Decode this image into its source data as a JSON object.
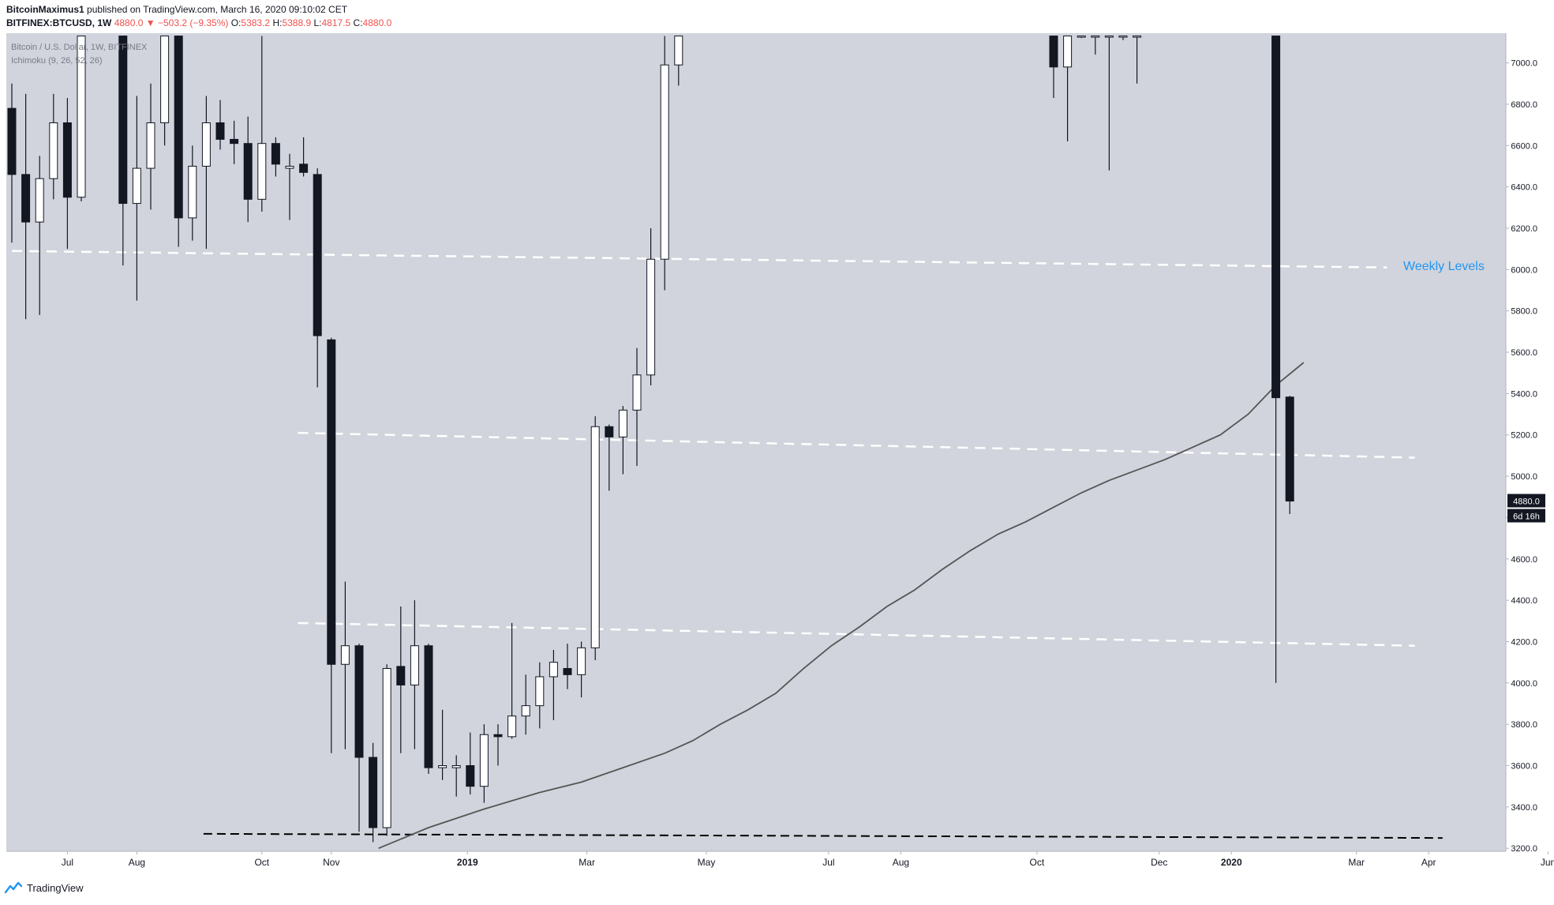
{
  "header": {
    "publisher": "BitcoinMaximus1",
    "published_text": "published on TradingView.com, March 16, 2020 09:10:02 CET",
    "symbol": "BITFINEX:BTCUSD, 1W",
    "last": "4880.0",
    "arrow": "▼",
    "change": "−503.2 (−9.35%)",
    "open_label": "O:",
    "open": "5383.2",
    "high_label": "H:",
    "high": "5388.9",
    "low_label": "L:",
    "low": "4817.5",
    "close_label": "C:",
    "close": "4880.0"
  },
  "overlay": {
    "title": "Bitcoin / U.S. Dollar, 1W, BITFINEX",
    "indicator": "Ichimoku (9, 26, 52, 26)"
  },
  "annotation": {
    "weekly_levels": "Weekly Levels"
  },
  "price_badge": {
    "price": "4880.0",
    "countdown": "6d 16h"
  },
  "footer": {
    "brand": "TradingView"
  },
  "colors": {
    "plot_bg": "#d1d4dc",
    "bull_body": "#ffffff",
    "bear_body": "#131722",
    "wick": "#131722",
    "level_line": "#ffffff",
    "support_line": "#000000",
    "ma_line": "#555555",
    "annotation": "#2196f3",
    "badge_bg": "#131722"
  },
  "chart_data": {
    "type": "candlestick",
    "title": "Bitcoin / U.S. Dollar, 1W, BITFINEX",
    "timeframe": "1W",
    "ylim": [
      3150,
      7130
    ],
    "y_ticks": [
      3200,
      3400,
      3600,
      3800,
      4000,
      4200,
      4400,
      4600,
      4800,
      5000,
      5200,
      5400,
      5600,
      5800,
      6000,
      6200,
      6400,
      6600,
      6800,
      7000
    ],
    "x_ticks": [
      {
        "label": "Jul",
        "week": 4
      },
      {
        "label": "Aug",
        "week": 9
      },
      {
        "label": "Oct",
        "week": 18
      },
      {
        "label": "Nov",
        "week": 23
      },
      {
        "label": "2019",
        "week": 32.8
      },
      {
        "label": "Mar",
        "week": 41.4
      },
      {
        "label": "May",
        "week": 50
      },
      {
        "label": "Jul",
        "week": 58.8
      },
      {
        "label": "Aug",
        "week": 64
      },
      {
        "label": "Oct",
        "week": 73.8
      },
      {
        "label": "Dec",
        "week": 82.6
      },
      {
        "label": "2020",
        "week": 87.8
      },
      {
        "label": "Mar",
        "week": 96.8
      },
      {
        "label": "Apr",
        "week": 102
      },
      {
        "label": "Jun",
        "week": 110.6
      }
    ],
    "candles": [
      {
        "w": 0,
        "o": 6780,
        "h": 6900,
        "l": 6130,
        "c": 6460
      },
      {
        "w": 1,
        "o": 6460,
        "h": 6850,
        "l": 5760,
        "c": 6230
      },
      {
        "w": 2,
        "o": 6230,
        "h": 6550,
        "l": 5780,
        "c": 6440
      },
      {
        "w": 3,
        "o": 6440,
        "h": 6850,
        "l": 6340,
        "c": 6710
      },
      {
        "w": 4,
        "o": 6710,
        "h": 6830,
        "l": 6100,
        "c": 6350
      },
      {
        "w": 5,
        "o": 6350,
        "h": 7130,
        "l": 6330,
        "c": 7130
      },
      {
        "w": 8,
        "o": 7130,
        "h": 7130,
        "l": 6020,
        "c": 6320
      },
      {
        "w": 9,
        "o": 6320,
        "h": 6840,
        "l": 5850,
        "c": 6490
      },
      {
        "w": 10,
        "o": 6490,
        "h": 6900,
        "l": 6290,
        "c": 6710
      },
      {
        "w": 11,
        "o": 6710,
        "h": 7130,
        "l": 6600,
        "c": 7130
      },
      {
        "w": 12,
        "o": 7130,
        "h": 7130,
        "l": 6110,
        "c": 6250
      },
      {
        "w": 13,
        "o": 6250,
        "h": 6600,
        "l": 6140,
        "c": 6500
      },
      {
        "w": 14,
        "o": 6500,
        "h": 6840,
        "l": 6100,
        "c": 6710
      },
      {
        "w": 15,
        "o": 6710,
        "h": 6820,
        "l": 6580,
        "c": 6630
      },
      {
        "w": 16,
        "o": 6630,
        "h": 6720,
        "l": 6510,
        "c": 6610
      },
      {
        "w": 17,
        "o": 6610,
        "h": 6740,
        "l": 6230,
        "c": 6340
      },
      {
        "w": 18,
        "o": 6340,
        "h": 7130,
        "l": 6280,
        "c": 6610
      },
      {
        "w": 19,
        "o": 6610,
        "h": 6640,
        "l": 6450,
        "c": 6510
      },
      {
        "w": 20,
        "o": 6490,
        "h": 6560,
        "l": 6240,
        "c": 6500
      },
      {
        "w": 21,
        "o": 6510,
        "h": 6640,
        "l": 6450,
        "c": 6470
      },
      {
        "w": 22,
        "o": 6460,
        "h": 6490,
        "l": 5430,
        "c": 5680
      },
      {
        "w": 23,
        "o": 5660,
        "h": 5670,
        "l": 3660,
        "c": 4090
      },
      {
        "w": 24,
        "o": 4090,
        "h": 4490,
        "l": 3680,
        "c": 4180
      },
      {
        "w": 25,
        "o": 4180,
        "h": 4190,
        "l": 3280,
        "c": 3640
      },
      {
        "w": 26,
        "o": 3640,
        "h": 3710,
        "l": 3230,
        "c": 3300
      },
      {
        "w": 27,
        "o": 3300,
        "h": 4090,
        "l": 3260,
        "c": 4070
      },
      {
        "w": 28,
        "o": 4080,
        "h": 4370,
        "l": 3660,
        "c": 3990
      },
      {
        "w": 29,
        "o": 3990,
        "h": 4400,
        "l": 3680,
        "c": 4180
      },
      {
        "w": 30,
        "o": 4180,
        "h": 4190,
        "l": 3560,
        "c": 3590
      },
      {
        "w": 31,
        "o": 3590,
        "h": 3870,
        "l": 3530,
        "c": 3600
      },
      {
        "w": 32,
        "o": 3590,
        "h": 3650,
        "l": 3450,
        "c": 3600
      },
      {
        "w": 33,
        "o": 3600,
        "h": 3760,
        "l": 3460,
        "c": 3500
      },
      {
        "w": 34,
        "o": 3500,
        "h": 3800,
        "l": 3420,
        "c": 3750
      },
      {
        "w": 35,
        "o": 3750,
        "h": 3800,
        "l": 3600,
        "c": 3740
      },
      {
        "w": 36,
        "o": 3740,
        "h": 4290,
        "l": 3730,
        "c": 3840
      },
      {
        "w": 37,
        "o": 3840,
        "h": 4040,
        "l": 3750,
        "c": 3890
      },
      {
        "w": 38,
        "o": 3890,
        "h": 4100,
        "l": 3780,
        "c": 4030
      },
      {
        "w": 39,
        "o": 4030,
        "h": 4160,
        "l": 3820,
        "c": 4100
      },
      {
        "w": 40,
        "o": 4070,
        "h": 4190,
        "l": 3970,
        "c": 4040
      },
      {
        "w": 41,
        "o": 4040,
        "h": 4200,
        "l": 3930,
        "c": 4170
      },
      {
        "w": 42,
        "o": 4170,
        "h": 5290,
        "l": 4110,
        "c": 5240
      },
      {
        "w": 43,
        "o": 5240,
        "h": 5250,
        "l": 4930,
        "c": 5190
      },
      {
        "w": 44,
        "o": 5190,
        "h": 5340,
        "l": 5010,
        "c": 5320
      },
      {
        "w": 45,
        "o": 5320,
        "h": 5620,
        "l": 5050,
        "c": 5490
      },
      {
        "w": 46,
        "o": 5490,
        "h": 6200,
        "l": 5440,
        "c": 6050
      },
      {
        "w": 47,
        "o": 6050,
        "h": 7130,
        "l": 5900,
        "c": 6990
      },
      {
        "w": 48,
        "o": 6990,
        "h": 7130,
        "l": 6890,
        "c": 7130
      },
      {
        "w": 75,
        "o": 7130,
        "h": 7130,
        "l": 6830,
        "c": 6980
      },
      {
        "w": 76,
        "o": 6980,
        "h": 7130,
        "l": 6620,
        "c": 7130
      },
      {
        "w": 77,
        "o": 7130,
        "h": 7130,
        "l": 7120,
        "c": 7130
      },
      {
        "w": 78,
        "o": 7130,
        "h": 7130,
        "l": 7040,
        "c": 7130
      },
      {
        "w": 79,
        "o": 7130,
        "h": 7130,
        "l": 6480,
        "c": 7130
      },
      {
        "w": 80,
        "o": 7130,
        "h": 7130,
        "l": 7110,
        "c": 7130
      },
      {
        "w": 81,
        "o": 7130,
        "h": 7130,
        "l": 6900,
        "c": 7130
      },
      {
        "w": 91,
        "o": 7130,
        "h": 7130,
        "l": 4000,
        "c": 5380
      },
      {
        "w": 92,
        "o": 5383.2,
        "h": 5388.9,
        "l": 4817.5,
        "c": 4880.0
      }
    ],
    "moving_average": [
      {
        "w": 26.4,
        "v": 3200
      },
      {
        "w": 30,
        "v": 3300
      },
      {
        "w": 34,
        "v": 3390
      },
      {
        "w": 38,
        "v": 3470
      },
      {
        "w": 41,
        "v": 3520
      },
      {
        "w": 44,
        "v": 3590
      },
      {
        "w": 47,
        "v": 3660
      },
      {
        "w": 49,
        "v": 3720
      },
      {
        "w": 51,
        "v": 3800
      },
      {
        "w": 53,
        "v": 3870
      },
      {
        "w": 55,
        "v": 3950
      },
      {
        "w": 57,
        "v": 4070
      },
      {
        "w": 59,
        "v": 4180
      },
      {
        "w": 61,
        "v": 4270
      },
      {
        "w": 63,
        "v": 4370
      },
      {
        "w": 65,
        "v": 4450
      },
      {
        "w": 67,
        "v": 4550
      },
      {
        "w": 69,
        "v": 4640
      },
      {
        "w": 71,
        "v": 4720
      },
      {
        "w": 73,
        "v": 4780
      },
      {
        "w": 75,
        "v": 4850
      },
      {
        "w": 77,
        "v": 4920
      },
      {
        "w": 79,
        "v": 4980
      },
      {
        "w": 81,
        "v": 5030
      },
      {
        "w": 83,
        "v": 5080
      },
      {
        "w": 85,
        "v": 5140
      },
      {
        "w": 87,
        "v": 5200
      },
      {
        "w": 89,
        "v": 5300
      },
      {
        "w": 91,
        "v": 5440
      },
      {
        "w": 93,
        "v": 5550
      }
    ],
    "level_lines": [
      {
        "from_w": 0,
        "to_w": 99,
        "v_start": 6090,
        "v_end": 6010,
        "style": "dashed-white"
      },
      {
        "from_w": 20.6,
        "to_w": 101,
        "v_start": 5210,
        "v_end": 5090,
        "style": "dashed-white"
      },
      {
        "from_w": 20.6,
        "to_w": 101,
        "v_start": 4290,
        "v_end": 4180,
        "style": "dashed-white"
      },
      {
        "from_w": 13.8,
        "to_w": 103,
        "v_start": 3270,
        "v_end": 3250,
        "style": "dashed-black"
      }
    ]
  }
}
